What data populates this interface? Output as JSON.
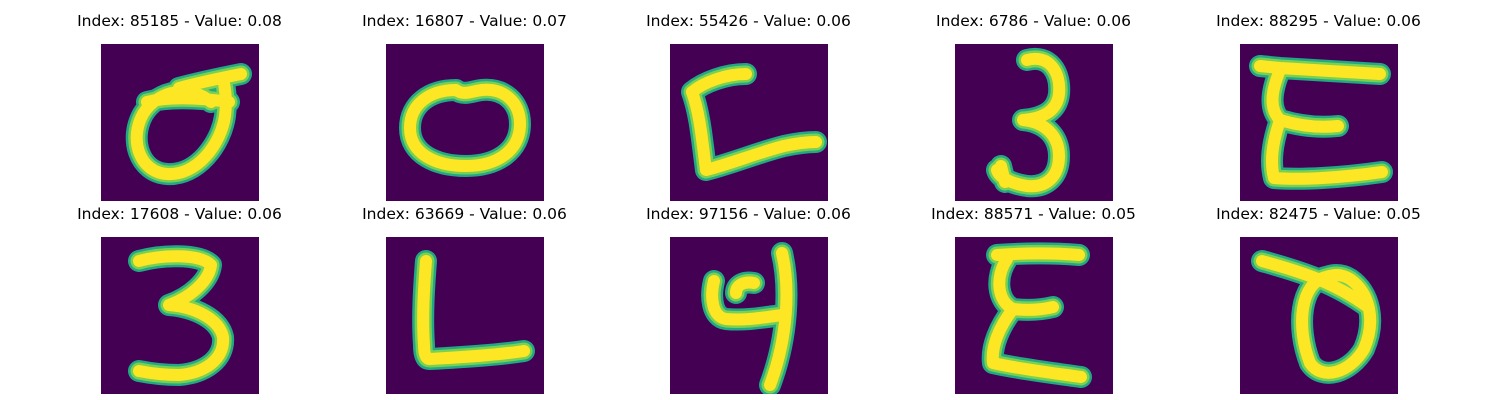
{
  "colors": {
    "background": "#440154",
    "stroke_core": "#fde725",
    "stroke_edge": "#22a884",
    "stroke_mid": "#7ad151"
  },
  "samples": [
    {
      "title": "Index: 85185 - Value: 0.08",
      "glyph": "digit-zero"
    },
    {
      "title": "Index: 16807 - Value: 0.07",
      "glyph": "letter-o"
    },
    {
      "title": "Index: 55426 - Value: 0.06",
      "glyph": "letter-l-slanted"
    },
    {
      "title": "Index: 6786 - Value: 0.06",
      "glyph": "digit-three"
    },
    {
      "title": "Index: 88295 - Value: 0.06",
      "glyph": "letter-e"
    },
    {
      "title": "Index: 17608 - Value: 0.06",
      "glyph": "digit-three-bold"
    },
    {
      "title": "Index: 63669 - Value: 0.06",
      "glyph": "letter-l"
    },
    {
      "title": "Index: 97156 - Value: 0.06",
      "glyph": "digit-four"
    },
    {
      "title": "Index: 88571 - Value: 0.05",
      "glyph": "letter-e-narrow"
    },
    {
      "title": "Index: 82475 - Value: 0.05",
      "glyph": "digit-zero-slashed"
    }
  ]
}
